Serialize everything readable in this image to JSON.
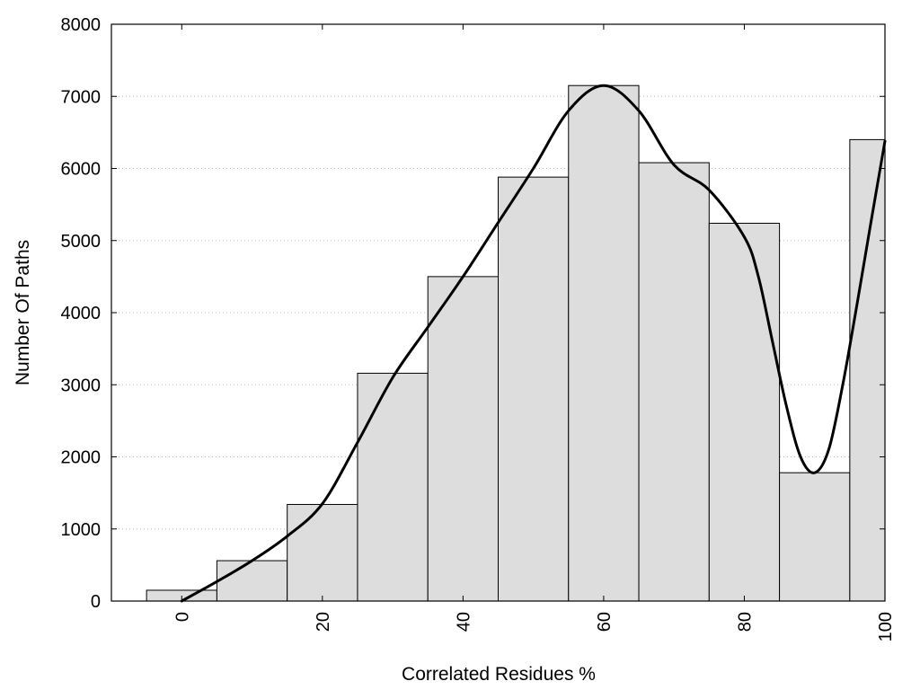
{
  "chart_data": {
    "type": "bar",
    "title": "",
    "xlabel": "Correlated Residues %",
    "ylabel": "Number Of Paths",
    "xlim": [
      -10,
      100
    ],
    "ylim": [
      0,
      8000
    ],
    "x_ticks": [
      0,
      20,
      40,
      60,
      80,
      100
    ],
    "y_ticks": [
      0,
      1000,
      2000,
      3000,
      4000,
      5000,
      6000,
      7000,
      8000
    ],
    "grid": "horizontal dotted",
    "bin_width": 10,
    "bins": [
      {
        "center": 0,
        "value": 150
      },
      {
        "center": 10,
        "value": 560
      },
      {
        "center": 20,
        "value": 1340
      },
      {
        "center": 30,
        "value": 3160
      },
      {
        "center": 40,
        "value": 4500
      },
      {
        "center": 50,
        "value": 5880
      },
      {
        "center": 60,
        "value": 7150
      },
      {
        "center": 70,
        "value": 6080
      },
      {
        "center": 80,
        "value": 5240
      },
      {
        "center": 90,
        "value": 1780
      },
      {
        "center": 100,
        "value": 6400
      }
    ],
    "smooth_curve": [
      [
        0,
        0
      ],
      [
        5,
        270
      ],
      [
        10,
        560
      ],
      [
        15,
        900
      ],
      [
        20,
        1350
      ],
      [
        25,
        2200
      ],
      [
        30,
        3100
      ],
      [
        35,
        3800
      ],
      [
        40,
        4500
      ],
      [
        45,
        5250
      ],
      [
        50,
        6000
      ],
      [
        55,
        6800
      ],
      [
        60,
        7150
      ],
      [
        65,
        6800
      ],
      [
        70,
        6050
      ],
      [
        75,
        5700
      ],
      [
        80,
        5050
      ],
      [
        82,
        4500
      ],
      [
        84,
        3600
      ],
      [
        86,
        2700
      ],
      [
        88,
        2000
      ],
      [
        90,
        1780
      ],
      [
        92,
        2100
      ],
      [
        94,
        3000
      ],
      [
        96,
        4100
      ],
      [
        98,
        5250
      ],
      [
        100,
        6380
      ]
    ],
    "colors": {
      "bar_fill": "#dddddd",
      "bar_stroke": "#000000",
      "curve": "#000000",
      "grid": "#bbbbbb"
    }
  }
}
